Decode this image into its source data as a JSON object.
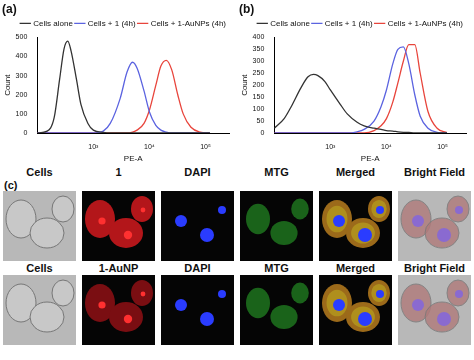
{
  "chart_data": [
    {
      "type": "line",
      "title": "(a)",
      "x_label": "PE-A",
      "y_label": "Count",
      "log": "x",
      "grid": false,
      "legend": "top right",
      "xlim": [
        100,
        262144
      ],
      "xticks": [
        {
          "value": 1000,
          "label": "10³"
        },
        {
          "value": 10000,
          "label": "10⁴"
        },
        {
          "value": 100000,
          "label": "10⁵"
        }
      ],
      "ylim": [
        0,
        500
      ],
      "yticks": [
        0,
        100,
        200,
        300,
        400,
        500
      ],
      "x": [
        100,
        150,
        200,
        250,
        300,
        350,
        400,
        500,
        600,
        800,
        1000,
        1500,
        2000,
        3000,
        4000,
        5000,
        6000,
        8000,
        10000,
        13000,
        16000,
        20000,
        25000,
        32000,
        40000,
        55000,
        80000,
        120000
      ],
      "series": [
        {
          "name": "Cells alone",
          "color": "#333333",
          "values": [
            0,
            10,
            80,
            280,
            440,
            480,
            430,
            280,
            150,
            50,
            15,
            3,
            0,
            0,
            0,
            0,
            0,
            0,
            0,
            0,
            0,
            0,
            0,
            0,
            0,
            0,
            0,
            0
          ]
        },
        {
          "name": "Cells + 1 (4h)",
          "color": "#5b63e0",
          "values": [
            0,
            0,
            0,
            0,
            0,
            0,
            0,
            0,
            0,
            0,
            0,
            10,
            50,
            180,
            320,
            370,
            340,
            220,
            110,
            40,
            15,
            5,
            0,
            0,
            0,
            0,
            0,
            0
          ]
        },
        {
          "name": "Cells + 1-AuNPs (4h)",
          "color": "#e8453c",
          "values": [
            0,
            0,
            0,
            0,
            0,
            0,
            0,
            0,
            0,
            0,
            0,
            0,
            0,
            0,
            0,
            5,
            15,
            50,
            120,
            250,
            350,
            380,
            330,
            200,
            100,
            30,
            5,
            0
          ]
        }
      ]
    },
    {
      "type": "line",
      "title": "(b)",
      "x_label": "PE-A",
      "y_label": "Count",
      "log": "x",
      "grid": false,
      "legend": "top right",
      "xlim": [
        100,
        262144
      ],
      "xticks": [
        {
          "value": 1000,
          "label": "10³"
        },
        {
          "value": 10000,
          "label": "10⁴"
        },
        {
          "value": 100000,
          "label": "10⁵"
        }
      ],
      "ylim": [
        0,
        400
      ],
      "yticks": [
        0,
        50,
        100,
        150,
        200,
        250,
        300,
        350,
        400
      ],
      "x": [
        100,
        150,
        200,
        300,
        400,
        500,
        600,
        800,
        1000,
        1500,
        2000,
        3000,
        4000,
        6000,
        8000,
        10000,
        13000,
        16000,
        20000,
        25000,
        32000,
        40000,
        55000,
        80000,
        120000
      ],
      "series": [
        {
          "name": "Cells alone",
          "color": "#333333",
          "values": [
            20,
            60,
            110,
            190,
            235,
            245,
            240,
            215,
            180,
            120,
            80,
            45,
            30,
            20,
            15,
            10,
            8,
            5,
            3,
            2,
            0,
            0,
            0,
            0,
            0
          ]
        },
        {
          "name": "Cells + 1 (4h)",
          "color": "#5b63e0",
          "values": [
            0,
            0,
            0,
            0,
            0,
            0,
            0,
            0,
            0,
            0,
            0,
            5,
            15,
            50,
            110,
            180,
            290,
            350,
            360,
            290,
            160,
            70,
            20,
            3,
            0
          ]
        },
        {
          "name": "Cells + 1-AuNPs (4h)",
          "color": "#e8453c",
          "values": [
            0,
            0,
            0,
            0,
            0,
            0,
            0,
            0,
            0,
            0,
            0,
            0,
            0,
            10,
            30,
            60,
            130,
            210,
            300,
            370,
            370,
            250,
            90,
            20,
            2
          ]
        }
      ]
    }
  ],
  "panel_c": {
    "label": "(c)",
    "rows": [
      {
        "labels": [
          "Cells",
          "1",
          "DAPI",
          "MTG",
          "Merged",
          "Bright Field"
        ]
      },
      {
        "labels": [
          "Cells",
          "1-AuNP",
          "DAPI",
          "MTG",
          "Merged",
          "Bright Field"
        ]
      }
    ]
  }
}
